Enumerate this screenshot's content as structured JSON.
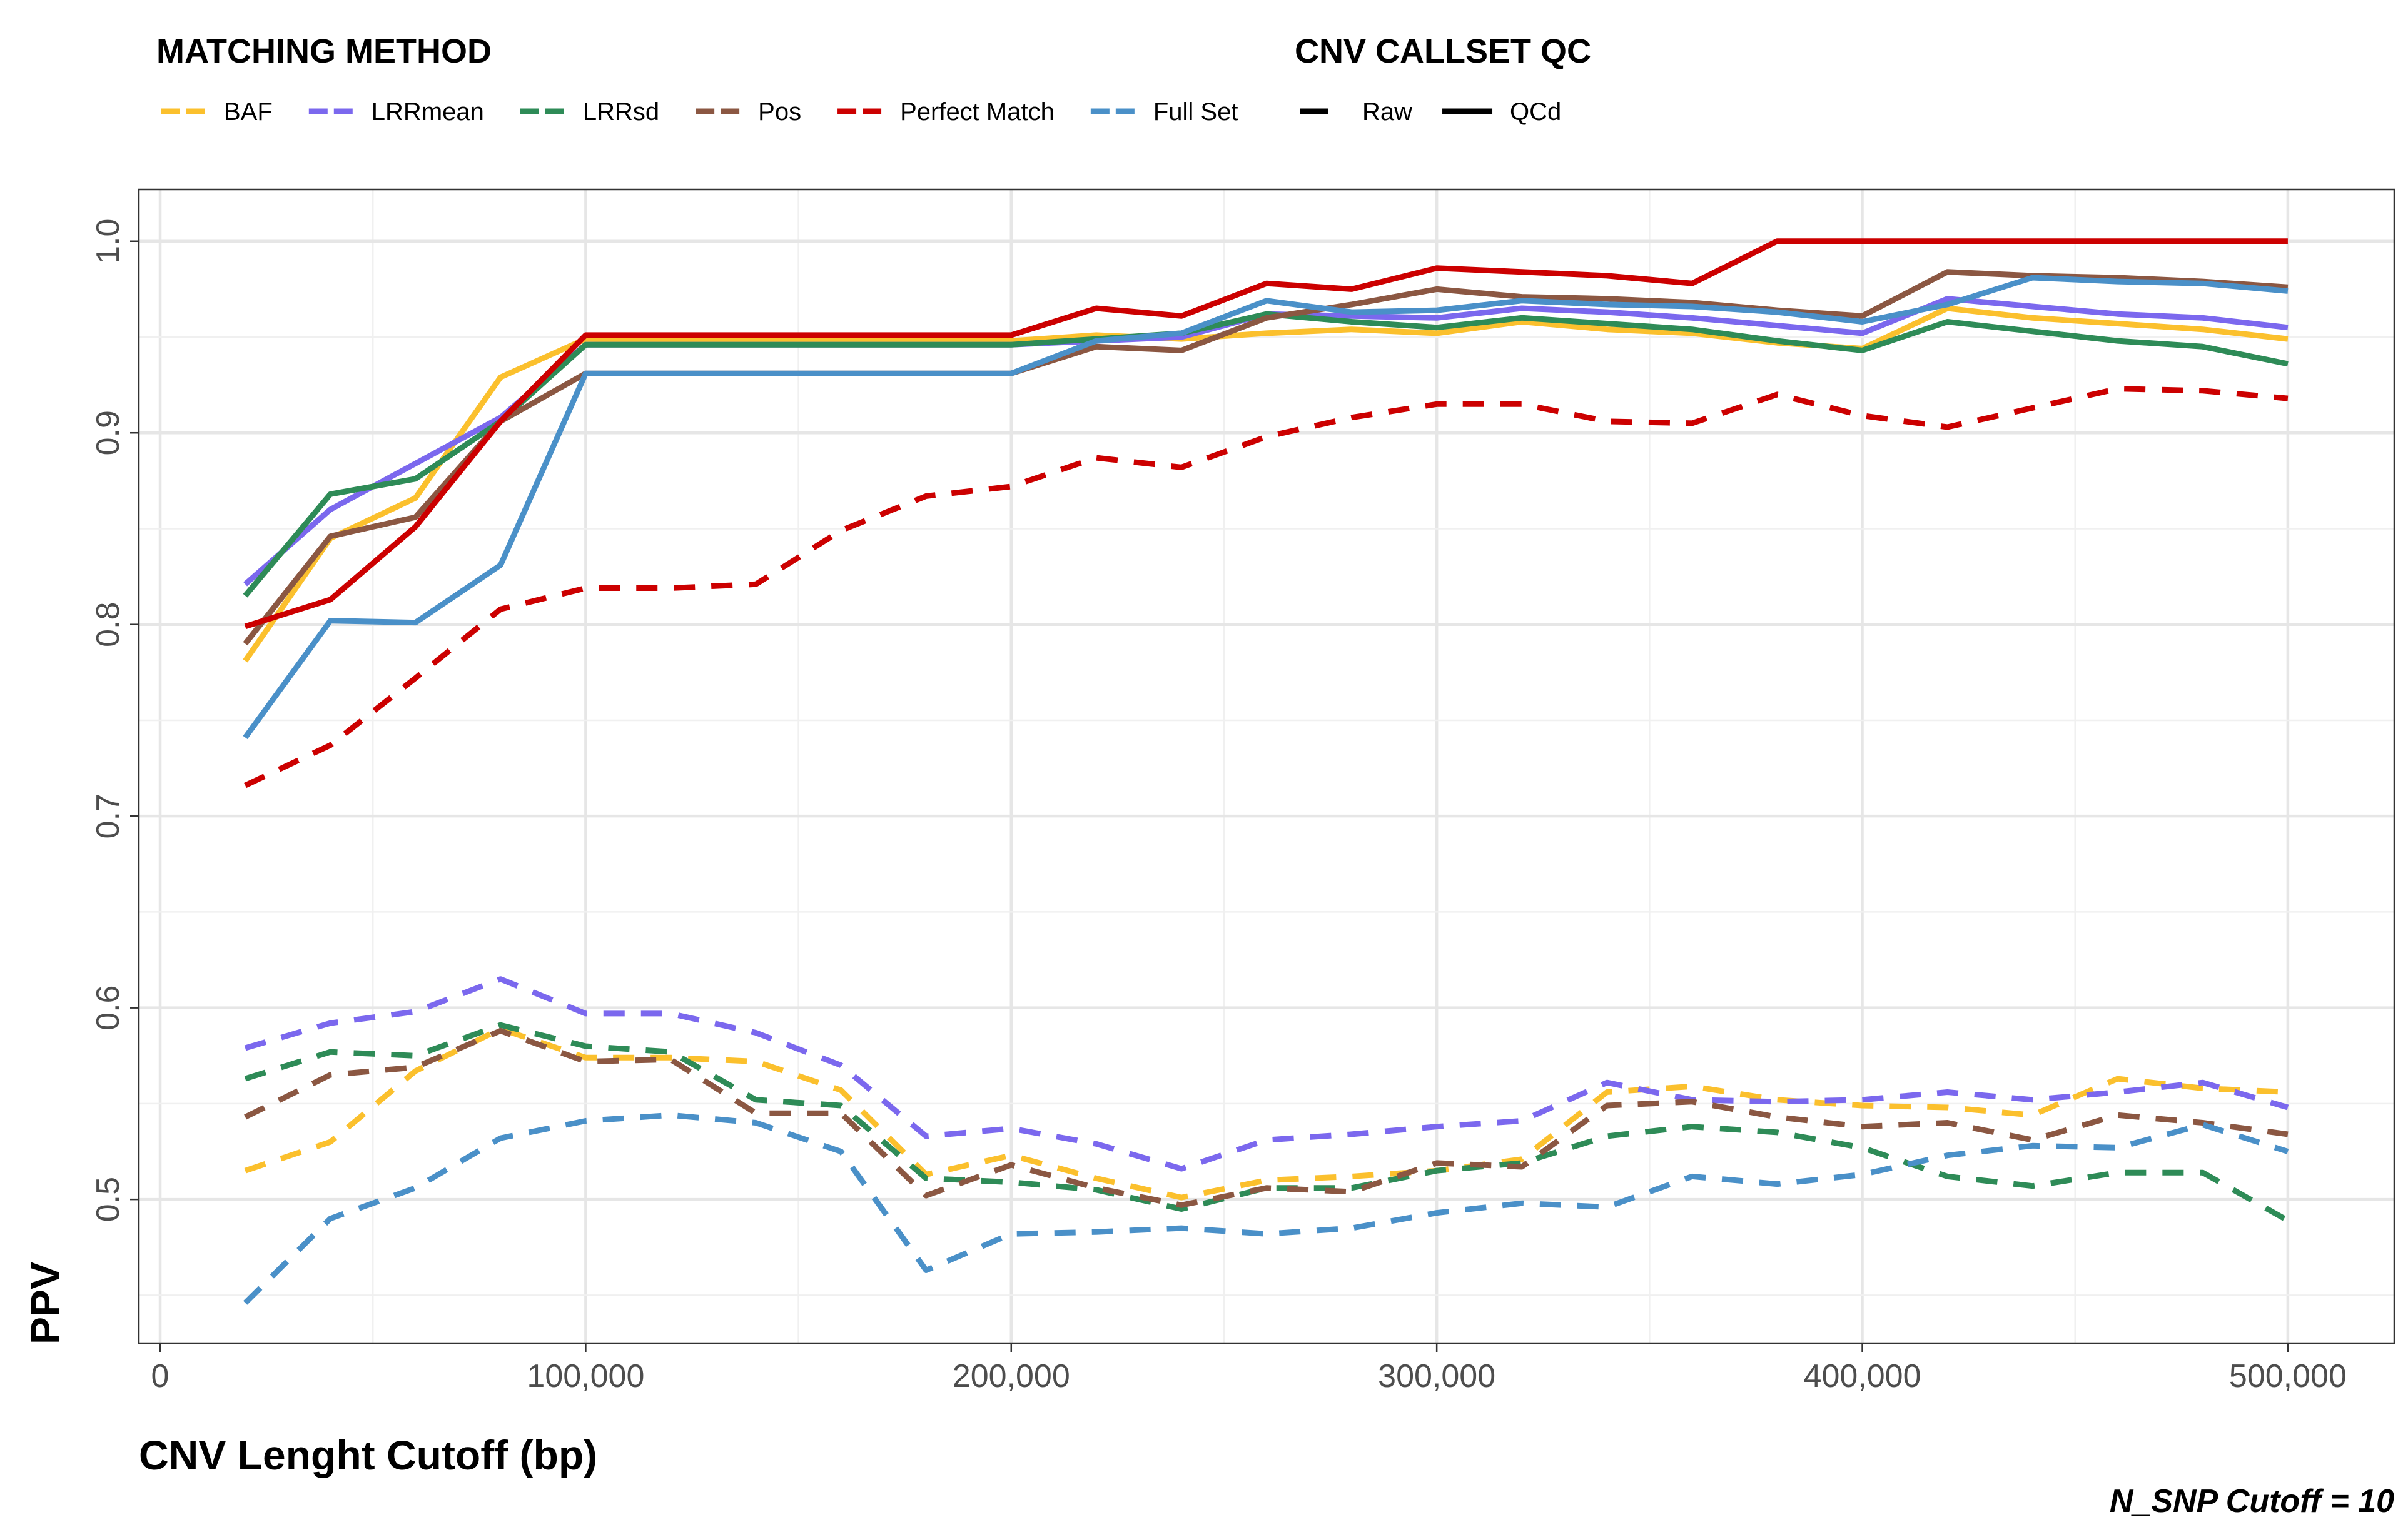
{
  "legend": {
    "method_title": "MATCHING METHOD",
    "qc_title": "CNV CALLSET QC",
    "qc_items": [
      {
        "label": "Raw",
        "dash": "dashed"
      },
      {
        "label": "QCd",
        "dash": "solid"
      }
    ]
  },
  "caption": "N_SNP Cutoff = 10",
  "chart_data": {
    "type": "line",
    "xlabel": "CNV Lenght Cutoff (bp)",
    "ylabel": "PPV",
    "xlim": [
      -5000,
      525000
    ],
    "ylim": [
      0.425,
      1.027
    ],
    "x_ticks": [
      0,
      100000,
      200000,
      300000,
      400000,
      500000
    ],
    "x_tick_labels": [
      "0",
      "100,000",
      "200,000",
      "300,000",
      "400,000",
      "500,000"
    ],
    "y_ticks": [
      0.5,
      0.6,
      0.7,
      0.8,
      0.9,
      1.0
    ],
    "y_tick_labels": [
      "0.5",
      "0.6",
      "0.7",
      "0.8",
      "0.9",
      "1.0"
    ],
    "grid": true,
    "legend_position": "top",
    "x": [
      20000,
      40000,
      60000,
      80000,
      100000,
      120000,
      140000,
      160000,
      180000,
      200000,
      220000,
      240000,
      260000,
      280000,
      300000,
      320000,
      340000,
      360000,
      380000,
      400000,
      420000,
      440000,
      460000,
      480000,
      500000
    ],
    "methods": [
      {
        "name": "BAF",
        "color": "#FBC02D"
      },
      {
        "name": "LRRmean",
        "color": "#7B68EE"
      },
      {
        "name": "LRRsd",
        "color": "#2E8B57"
      },
      {
        "name": "Pos",
        "color": "#8B5742"
      },
      {
        "name": "Perfect Match",
        "color": "#CC0000"
      },
      {
        "name": "Full Set",
        "color": "#4A90C8"
      }
    ],
    "series": [
      {
        "method": "BAF",
        "qc": "QCd",
        "values": [
          0.781,
          0.845,
          0.866,
          0.929,
          0.949,
          0.948,
          0.948,
          0.948,
          0.948,
          0.948,
          0.951,
          0.949,
          0.952,
          0.954,
          0.952,
          0.958,
          0.954,
          0.952,
          0.947,
          0.944,
          0.965,
          0.96,
          0.957,
          0.954,
          0.949
        ]
      },
      {
        "method": "LRRmean",
        "qc": "QCd",
        "values": [
          0.821,
          0.86,
          0.884,
          0.908,
          0.946,
          0.946,
          0.946,
          0.946,
          0.946,
          0.946,
          0.948,
          0.95,
          0.962,
          0.961,
          0.96,
          0.965,
          0.963,
          0.96,
          0.956,
          0.952,
          0.97,
          0.966,
          0.962,
          0.96,
          0.955
        ]
      },
      {
        "method": "LRRsd",
        "qc": "QCd",
        "values": [
          0.815,
          0.868,
          0.876,
          0.906,
          0.946,
          0.946,
          0.946,
          0.946,
          0.946,
          0.946,
          0.949,
          0.952,
          0.962,
          0.958,
          0.955,
          0.96,
          0.957,
          0.954,
          0.948,
          0.943,
          0.958,
          0.953,
          0.948,
          0.945,
          0.936
        ]
      },
      {
        "method": "Pos",
        "qc": "QCd",
        "values": [
          0.79,
          0.846,
          0.856,
          0.906,
          0.931,
          0.931,
          0.931,
          0.931,
          0.931,
          0.931,
          0.945,
          0.943,
          0.96,
          0.967,
          0.975,
          0.971,
          0.97,
          0.968,
          0.964,
          0.961,
          0.984,
          0.982,
          0.981,
          0.979,
          0.976
        ]
      },
      {
        "method": "Perfect Match",
        "qc": "QCd",
        "values": [
          0.799,
          0.813,
          0.851,
          0.906,
          0.951,
          0.951,
          0.951,
          0.951,
          0.951,
          0.951,
          0.965,
          0.961,
          0.978,
          0.975,
          0.986,
          0.984,
          0.982,
          0.978,
          1.0,
          1.0,
          1.0,
          1.0,
          1.0,
          1.0,
          1.0
        ]
      },
      {
        "method": "Full Set",
        "qc": "QCd",
        "values": [
          0.741,
          0.802,
          0.801,
          0.831,
          0.931,
          0.931,
          0.931,
          0.931,
          0.931,
          0.931,
          0.948,
          0.952,
          0.969,
          0.963,
          0.964,
          0.969,
          0.967,
          0.966,
          0.963,
          0.958,
          0.967,
          0.981,
          0.979,
          0.978,
          0.974
        ]
      },
      {
        "method": "BAF",
        "qc": "Raw",
        "values": [
          0.515,
          0.53,
          0.567,
          0.589,
          0.574,
          0.574,
          0.572,
          0.557,
          0.513,
          0.523,
          0.511,
          0.501,
          0.51,
          0.512,
          0.515,
          0.521,
          0.556,
          0.559,
          0.552,
          0.549,
          0.548,
          0.544,
          0.563,
          0.558,
          0.556
        ]
      },
      {
        "method": "LRRmean",
        "qc": "Raw",
        "values": [
          0.579,
          0.592,
          0.598,
          0.615,
          0.597,
          0.597,
          0.587,
          0.57,
          0.533,
          0.537,
          0.529,
          0.516,
          0.531,
          0.534,
          0.538,
          0.541,
          0.561,
          0.552,
          0.551,
          0.552,
          0.556,
          0.552,
          0.556,
          0.561,
          0.548
        ]
      },
      {
        "method": "LRRsd",
        "qc": "Raw",
        "values": [
          0.563,
          0.577,
          0.575,
          0.591,
          0.58,
          0.577,
          0.552,
          0.549,
          0.511,
          0.509,
          0.505,
          0.495,
          0.506,
          0.506,
          0.515,
          0.519,
          0.533,
          0.538,
          0.535,
          0.527,
          0.512,
          0.507,
          0.514,
          0.514,
          0.489
        ]
      },
      {
        "method": "Pos",
        "qc": "Raw",
        "values": [
          0.543,
          0.565,
          0.569,
          0.588,
          0.572,
          0.573,
          0.545,
          0.545,
          0.502,
          0.518,
          0.506,
          0.497,
          0.506,
          0.504,
          0.519,
          0.517,
          0.549,
          0.551,
          0.543,
          0.538,
          0.54,
          0.531,
          0.544,
          0.54,
          0.534
        ]
      },
      {
        "method": "Full Set",
        "qc": "Raw",
        "values": [
          0.446,
          0.49,
          0.506,
          0.532,
          0.541,
          0.544,
          0.54,
          0.525,
          0.463,
          0.482,
          0.483,
          0.485,
          0.482,
          0.485,
          0.493,
          0.498,
          0.496,
          0.512,
          0.508,
          0.513,
          0.523,
          0.528,
          0.527,
          0.539,
          0.525
        ]
      },
      {
        "method": "Perfect Match",
        "qc": "Raw",
        "values": [
          0.716,
          0.737,
          0.772,
          0.808,
          0.819,
          0.819,
          0.821,
          0.849,
          0.867,
          0.872,
          0.887,
          0.882,
          0.898,
          0.908,
          0.915,
          0.915,
          0.906,
          0.905,
          0.92,
          0.909,
          0.903,
          0.913,
          0.923,
          0.922,
          0.918
        ]
      }
    ]
  }
}
